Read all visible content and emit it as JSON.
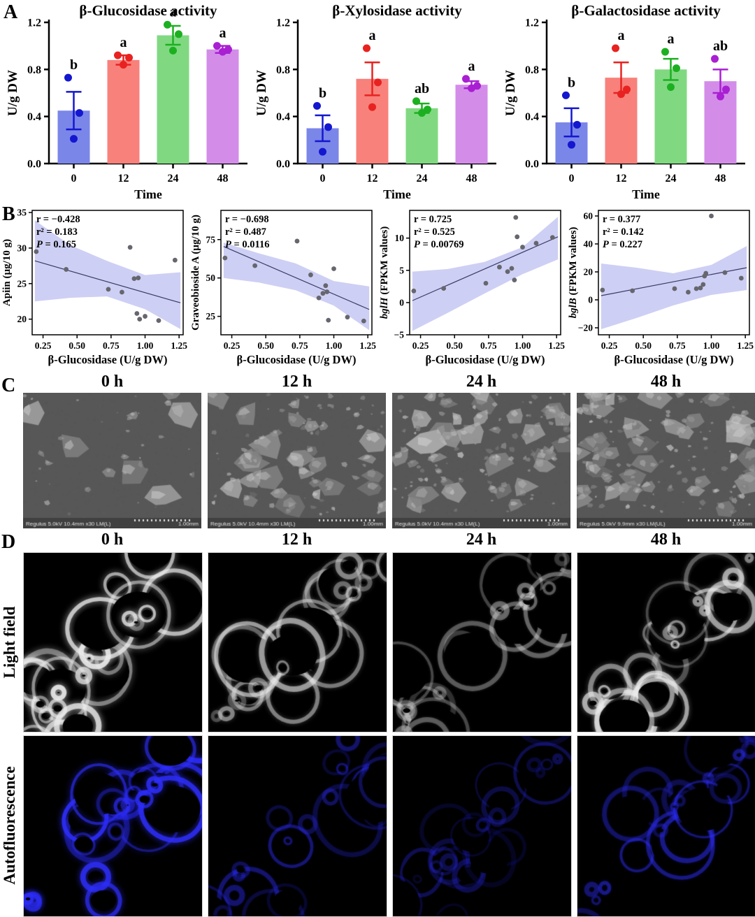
{
  "panels": {
    "a": "A",
    "b": "B",
    "c": "C",
    "d": "D"
  },
  "styles": {
    "bar_fill_colors": [
      "#7b86e9",
      "#f8817b",
      "#80d981",
      "#d38de9"
    ],
    "point_colors": [
      "#1317cf",
      "#e82220",
      "#1cb021",
      "#a91fd2"
    ],
    "scatter_band_color": "#c6c7f2",
    "scatter_line_color": "#3b3b66",
    "scatter_point_color": "#66666e",
    "sem_caption_color": "#e0e0e0"
  },
  "chart_data": {
    "bar_charts": [
      {
        "type": "bar",
        "title": "β-Glucosidase activity",
        "ylabel": "U/g DW",
        "xlabel": "Time",
        "ylim": [
          0,
          1.2
        ],
        "yticks": [
          "0.0",
          "0.4",
          "0.8",
          "1.2"
        ],
        "categories": [
          "0",
          "12",
          "24",
          "48"
        ],
        "means": [
          0.45,
          0.88,
          1.09,
          0.97
        ],
        "errors": [
          0.16,
          0.04,
          0.08,
          0.03
        ],
        "letters": [
          "b",
          "a",
          "a",
          "a"
        ],
        "points": [
          [
            0.73,
            0.43,
            0.21
          ],
          [
            0.92,
            0.9,
            0.84
          ],
          [
            1.18,
            1.1,
            0.96
          ],
          [
            1.0,
            0.97,
            0.95
          ]
        ]
      },
      {
        "type": "bar",
        "title": "β-Xylosidase activity",
        "ylabel": "U/g DW",
        "xlabel": "Time",
        "ylim": [
          0,
          1.2
        ],
        "yticks": [
          "0.0",
          "0.4",
          "0.8",
          "1.2"
        ],
        "categories": [
          "0",
          "12",
          "24",
          "48"
        ],
        "means": [
          0.3,
          0.72,
          0.47,
          0.67
        ],
        "errors": [
          0.11,
          0.14,
          0.04,
          0.03
        ],
        "letters": [
          "b",
          "a",
          "ab",
          "a"
        ],
        "points": [
          [
            0.49,
            0.31,
            0.1
          ],
          [
            0.98,
            0.69,
            0.48
          ],
          [
            0.53,
            0.46,
            0.43
          ],
          [
            0.72,
            0.66,
            0.64
          ]
        ]
      },
      {
        "type": "bar",
        "title": "β-Galactosidase activity",
        "ylabel": "U/g DW",
        "xlabel": "Time",
        "ylim": [
          0,
          1.2
        ],
        "yticks": [
          "0.0",
          "0.4",
          "0.8",
          "1.2"
        ],
        "categories": [
          "0",
          "12",
          "24",
          "48"
        ],
        "means": [
          0.35,
          0.73,
          0.8,
          0.7
        ],
        "errors": [
          0.12,
          0.13,
          0.09,
          0.1
        ],
        "letters": [
          "b",
          "a",
          "a",
          "ab"
        ],
        "points": [
          [
            0.58,
            0.33,
            0.16
          ],
          [
            0.98,
            0.63,
            0.59
          ],
          [
            0.95,
            0.81,
            0.65
          ],
          [
            0.89,
            0.63,
            0.57
          ]
        ]
      }
    ],
    "scatter_charts": [
      {
        "type": "scatter",
        "ylabel": "Apiin (µg/10 g)",
        "ylabel_italic": "",
        "xlabel": "β-Glucosidase (U/g DW)",
        "stats": {
          "r": "r = −0.428",
          "r2": "r² = 0.183",
          "p_label": "P",
          "p_rest": " = 0.165"
        },
        "xlim": [
          0.17,
          1.28
        ],
        "xticks": [
          0.25,
          0.5,
          0.75,
          1.0,
          1.25
        ],
        "xtick_labels": [
          "0.25",
          "0.50",
          "0.75",
          "1.00",
          "1.25"
        ],
        "ylim": [
          17.8,
          35.3
        ],
        "yticks": [
          20,
          25,
          30,
          35
        ],
        "ytick_labels": [
          "20",
          "25",
          "30",
          "35"
        ],
        "x": [
          0.2,
          0.42,
          0.73,
          0.83,
          0.89,
          0.92,
          0.94,
          0.95,
          0.96,
          1.0,
          1.1,
          1.22
        ],
        "y": [
          29.5,
          27.0,
          24.2,
          23.8,
          30.1,
          25.7,
          20.8,
          25.8,
          20.0,
          20.4,
          19.8,
          28.3
        ],
        "line": {
          "x1": 0.19,
          "y1": 28.2,
          "x2": 1.26,
          "y2": 22.3
        },
        "band": {
          "x": [
            0.19,
            0.45,
            0.72,
            1.0,
            1.26
          ],
          "lower": [
            22.5,
            23.0,
            23.2,
            21.4,
            18.6
          ],
          "upper": [
            33.9,
            30.4,
            28.2,
            26.2,
            26.6
          ]
        }
      },
      {
        "type": "scatter",
        "ylabel": "Graveobioside A (µg/10 g)",
        "ylabel_italic": "",
        "xlabel": "β-Glucosidase (U/g DW)",
        "stats": {
          "r": "r = −0.698",
          "r2": "r² = 0.487",
          "p_label": "P",
          "p_rest": " = 0.0116"
        },
        "xlim": [
          0.17,
          1.28
        ],
        "xticks": [
          0.25,
          0.5,
          0.75,
          1.0,
          1.25
        ],
        "xtick_labels": [
          "0.25",
          "0.50",
          "0.75",
          "1.00",
          "1.25"
        ],
        "ylim": [
          13,
          94
        ],
        "yticks": [
          25,
          50,
          75
        ],
        "ytick_labels": [
          "25",
          "50",
          "75"
        ],
        "x": [
          0.2,
          0.42,
          0.73,
          0.83,
          0.89,
          0.92,
          0.94,
          0.95,
          0.96,
          1.0,
          1.1,
          1.22
        ],
        "y": [
          63,
          58,
          74,
          52,
          37,
          40,
          45,
          41,
          22.5,
          56,
          24.5,
          22
        ],
        "line": {
          "x1": 0.19,
          "y1": 70.5,
          "x2": 1.26,
          "y2": 29.5
        },
        "band": {
          "x": [
            0.19,
            0.45,
            0.72,
            1.0,
            1.26
          ],
          "lower": [
            50,
            47,
            42,
            32,
            16
          ],
          "upper": [
            73,
            66,
            59.5,
            48,
            44.5
          ]
        }
      },
      {
        "type": "scatter",
        "ylabel": " (FPKM values)",
        "ylabel_italic": "bglH",
        "xlabel": "β-Glucosidase (U/g DW)",
        "stats": {
          "r": "r = 0.725",
          "r2": "r² = 0.525",
          "p_label": "P",
          "p_rest": " = 0.00769"
        },
        "xlim": [
          0.17,
          1.28
        ],
        "xticks": [
          0.25,
          0.5,
          0.75,
          1.0,
          1.25
        ],
        "xtick_labels": [
          "0.25",
          "0.50",
          "0.75",
          "1.00",
          "1.25"
        ],
        "ylim": [
          -5,
          14.3
        ],
        "yticks": [
          -5,
          0,
          5,
          10
        ],
        "ytick_labels": [
          "−5",
          "0",
          "5",
          "10"
        ],
        "x": [
          0.2,
          0.42,
          0.73,
          0.83,
          0.89,
          0.92,
          0.94,
          0.95,
          0.96,
          1.0,
          1.1,
          1.22
        ],
        "y": [
          1.8,
          2.2,
          3.0,
          5.5,
          4.8,
          5.3,
          3.5,
          13.2,
          10.2,
          8.6,
          9.2,
          10.1
        ],
        "line": {
          "x1": 0.19,
          "y1": 0.3,
          "x2": 1.26,
          "y2": 10.2
        },
        "band": {
          "x": [
            0.19,
            0.45,
            0.72,
            1.0,
            1.26
          ],
          "lower": [
            -4.4,
            -1.6,
            1.4,
            4.4,
            6.7
          ],
          "upper": [
            4.8,
            5.2,
            6.3,
            8.6,
            13.3
          ]
        }
      },
      {
        "type": "scatter",
        "ylabel": " (FPKM values)",
        "ylabel_italic": "bglB",
        "xlabel": "β-Glucosidase (U/g DW)",
        "stats": {
          "r": "r = 0.377",
          "r2": "r² = 0.142",
          "p_label": "P",
          "p_rest": " = 0.227"
        },
        "xlim": [
          0.17,
          1.28
        ],
        "xticks": [
          0.25,
          0.5,
          0.75,
          1.0,
          1.25
        ],
        "xtick_labels": [
          "0.25",
          "0.50",
          "0.75",
          "1.00",
          "1.25"
        ],
        "ylim": [
          -25,
          64
        ],
        "yticks": [
          -20,
          0,
          20,
          40,
          60
        ],
        "ytick_labels": [
          "−20",
          "0",
          "20",
          "40",
          "60"
        ],
        "x": [
          0.2,
          0.42,
          0.73,
          0.83,
          0.89,
          0.92,
          0.94,
          0.95,
          0.96,
          1.0,
          1.1,
          1.22
        ],
        "y": [
          7,
          6.5,
          8,
          5.5,
          8,
          8.5,
          11,
          17,
          19,
          60,
          19.5,
          15.5
        ],
        "line": {
          "x1": 0.19,
          "y1": 3,
          "x2": 1.26,
          "y2": 23
        },
        "band": {
          "x": [
            0.19,
            0.45,
            0.72,
            1.0,
            1.26
          ],
          "lower": [
            -21,
            -13,
            -4,
            3.5,
            7
          ],
          "upper": [
            26,
            23,
            19,
            25,
            38.5
          ]
        }
      }
    ]
  },
  "sem_row": {
    "times": [
      "0 h",
      "12 h",
      "24 h",
      "48 h"
    ],
    "images": [
      {
        "caption": "Regulus 5.0kV 10.4mm x30 LM(L)",
        "scale_label": "1.00mm",
        "seed": 7,
        "density": 14
      },
      {
        "caption": "Regulus 5.0kV 10.4mm x30 LM(L)",
        "scale_label": "1.00mm",
        "seed": 19,
        "density": 34
      },
      {
        "caption": "Regulus 5.0kV 10.4mm x30 LM(L)",
        "scale_label": "1.00mm",
        "seed": 29,
        "density": 44
      },
      {
        "caption": "Regulus 5.0kV 9.9mm x30 LM(UL)",
        "scale_label": "1.00mm",
        "seed": 41,
        "density": 50
      }
    ]
  },
  "micro": {
    "times": [
      "0 h",
      "12 h",
      "24 h",
      "48 h"
    ],
    "row_labels": [
      "Light field",
      "Autofluorescence"
    ],
    "column_seeds": [
      101,
      202,
      303,
      404
    ],
    "light_brightness": [
      1.0,
      0.6,
      0.42,
      0.72
    ],
    "fluo_brightness": [
      1.0,
      0.45,
      0.3,
      0.5
    ]
  }
}
